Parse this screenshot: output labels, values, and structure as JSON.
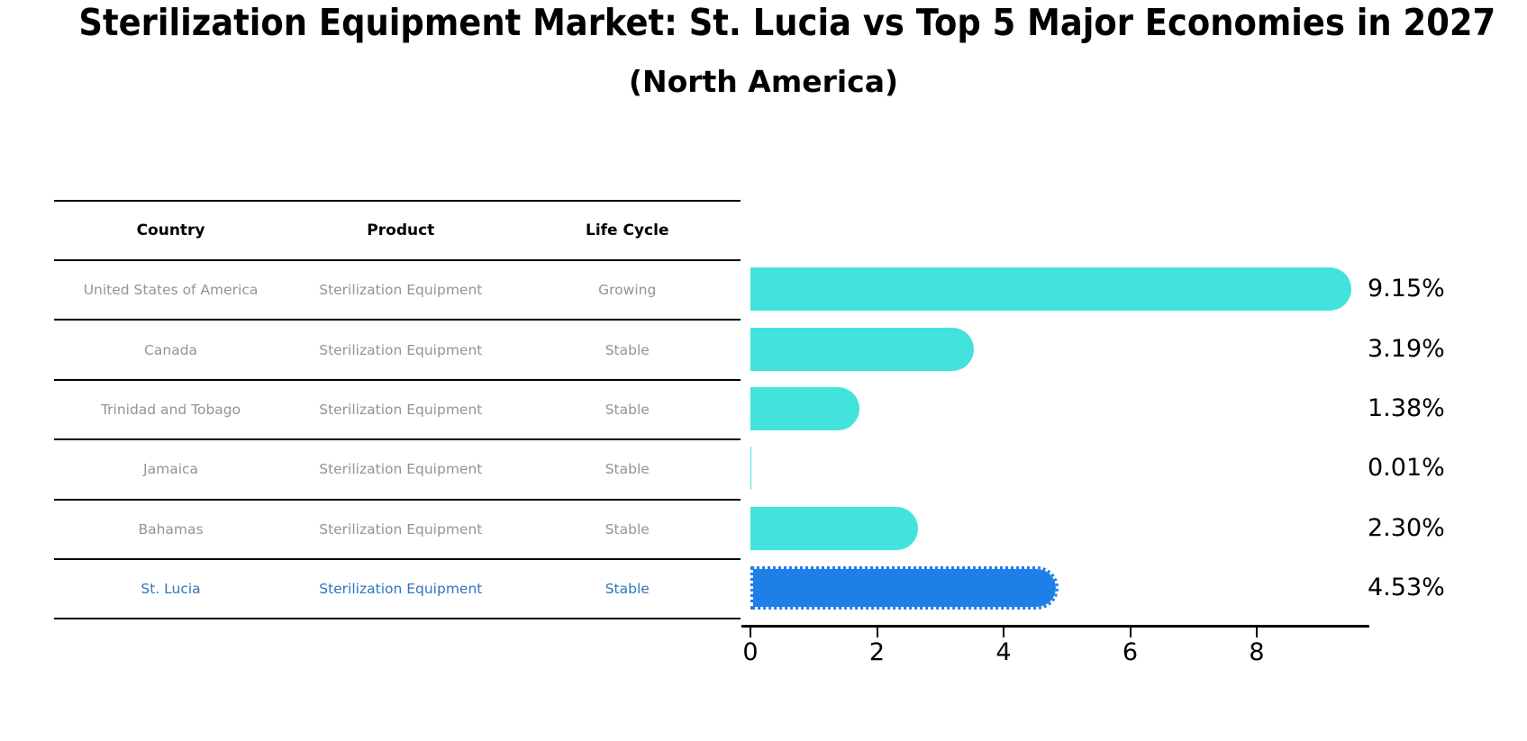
{
  "header": {
    "title": "Sterilization Equipment Market: St. Lucia vs Top 5 Major Economies in 2027",
    "subtitle": "(North America)"
  },
  "table": {
    "columns": [
      "Country",
      "Product",
      "Life Cycle"
    ],
    "rows": [
      {
        "country": "United States of America",
        "product": "Sterilization Equipment",
        "life_cycle": "Growing",
        "highlight": false
      },
      {
        "country": "Canada",
        "product": "Sterilization Equipment",
        "life_cycle": "Stable",
        "highlight": false
      },
      {
        "country": "Trinidad and Tobago",
        "product": "Sterilization Equipment",
        "life_cycle": "Stable",
        "highlight": false
      },
      {
        "country": "Jamaica",
        "product": "Sterilization Equipment",
        "life_cycle": "Stable",
        "highlight": false
      },
      {
        "country": "Bahamas",
        "product": "Sterilization Equipment",
        "life_cycle": "Stable",
        "highlight": false
      },
      {
        "country": "St. Lucia",
        "product": "Sterilization Equipment",
        "life_cycle": "Stable",
        "highlight": true
      }
    ]
  },
  "chart_data": {
    "type": "bar",
    "orientation": "horizontal",
    "title": "Sterilization Equipment Market: St. Lucia vs Top 5 Major Economies in 2027 (North America)",
    "categories": [
      "United States of America",
      "Canada",
      "Trinidad and Tobago",
      "Jamaica",
      "Bahamas",
      "St. Lucia"
    ],
    "values": [
      9.15,
      3.19,
      1.38,
      0.01,
      2.3,
      4.53
    ],
    "value_labels": [
      "9.15%",
      "3.19%",
      "1.38%",
      "0.01%",
      "2.30%",
      "4.53%"
    ],
    "x_ticks": [
      0,
      2,
      4,
      6,
      8
    ],
    "xlim": [
      0,
      9.8
    ],
    "grid": false,
    "legend_position": "none",
    "highlight_index": 5,
    "bar_color": "#42E3DD",
    "highlight_color": "#1F7FE8"
  },
  "colors": {
    "muted_text": "#949494",
    "highlight_text": "#2D76BE",
    "axis": "#000000"
  }
}
